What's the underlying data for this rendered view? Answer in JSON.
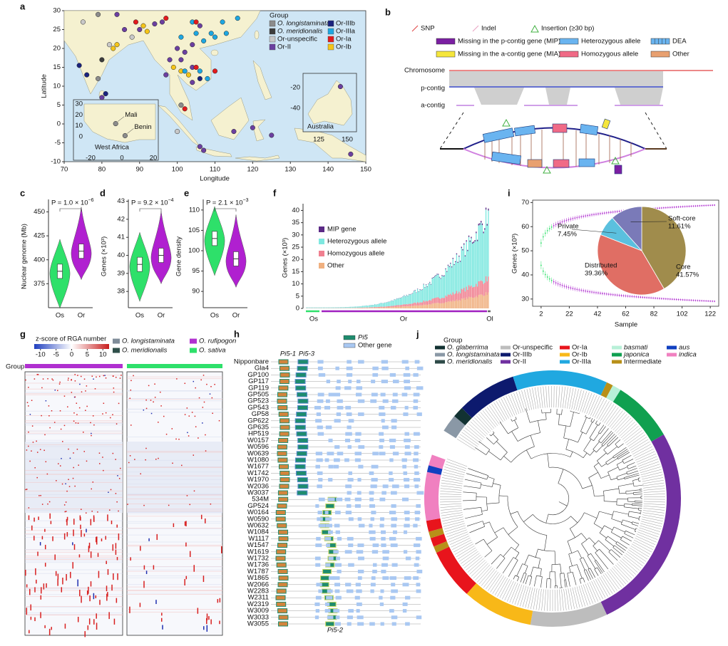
{
  "panel_a": {
    "letter": "a",
    "xlabel": "Longitude",
    "ylabel": "Latitude",
    "xlim": [
      70,
      150
    ],
    "ylim": [
      -10,
      30
    ],
    "xticks": [
      70,
      80,
      90,
      100,
      110,
      120,
      130,
      140,
      150
    ],
    "yticks": [
      -10,
      -5,
      0,
      5,
      10,
      15,
      20,
      25,
      30
    ],
    "legend_title": "Group",
    "legend": [
      {
        "name": "O. longistaminata",
        "color": "#8c8c8c",
        "italic": true
      },
      {
        "name": "O. meridionalis",
        "color": "#3c3c3c",
        "italic": true
      },
      {
        "name": "Or-unspecific",
        "color": "#c8c8c8"
      },
      {
        "name": "Or-II",
        "color": "#6b3fa0"
      },
      {
        "name": "Or-IIIb",
        "color": "#1a237e"
      },
      {
        "name": "Or-IIIa",
        "color": "#1ea7e1"
      },
      {
        "name": "Or-Ia",
        "color": "#e31a1c"
      },
      {
        "name": "Or-Ib",
        "color": "#f5c518"
      }
    ],
    "points": [
      [
        75,
        27,
        2
      ],
      [
        79,
        29,
        0
      ],
      [
        84,
        29,
        3
      ],
      [
        89,
        27,
        6
      ],
      [
        90,
        25,
        3
      ],
      [
        91,
        26,
        7
      ],
      [
        92,
        24.5,
        7
      ],
      [
        94,
        26.5,
        3
      ],
      [
        96,
        27,
        3
      ],
      [
        97,
        28,
        6
      ],
      [
        86,
        25,
        3
      ],
      [
        88,
        23,
        2
      ],
      [
        82,
        21,
        2
      ],
      [
        83,
        20,
        7
      ],
      [
        84,
        21,
        7
      ],
      [
        80,
        17,
        1
      ],
      [
        79,
        12,
        0
      ],
      [
        76,
        13,
        4
      ],
      [
        74,
        15.5,
        4
      ],
      [
        80,
        7,
        3
      ],
      [
        81,
        8,
        4
      ],
      [
        104,
        27,
        5
      ],
      [
        105,
        24,
        5
      ],
      [
        106,
        26,
        3
      ],
      [
        107,
        22,
        5
      ],
      [
        109,
        24,
        5
      ],
      [
        110,
        23,
        5
      ],
      [
        113,
        24,
        5
      ],
      [
        116,
        28,
        5
      ],
      [
        112,
        27,
        5
      ],
      [
        101,
        23,
        5
      ],
      [
        104,
        21,
        3
      ],
      [
        100,
        20,
        3
      ],
      [
        102,
        19,
        3
      ],
      [
        101,
        17,
        3
      ],
      [
        98,
        17,
        3
      ],
      [
        99,
        15,
        7
      ],
      [
        101,
        14,
        7
      ],
      [
        102,
        14,
        5
      ],
      [
        103,
        13,
        7
      ],
      [
        104,
        15,
        3
      ],
      [
        106,
        12,
        4
      ],
      [
        104,
        11,
        3
      ],
      [
        105,
        15,
        6
      ],
      [
        106,
        14,
        5
      ],
      [
        110,
        14,
        6
      ],
      [
        108,
        12,
        5
      ],
      [
        97,
        13,
        3
      ],
      [
        101,
        5,
        0
      ],
      [
        102,
        4,
        6
      ],
      [
        100,
        -2,
        2
      ],
      [
        106,
        -6,
        3
      ],
      [
        107,
        -7,
        3
      ],
      [
        115,
        -2,
        3
      ],
      [
        125,
        -3,
        3
      ],
      [
        120,
        -1,
        3
      ],
      [
        146,
        -8,
        3
      ],
      [
        105,
        27,
        6
      ]
    ],
    "inset_africa": {
      "label": "West Africa",
      "xlim": [
        -20,
        20
      ],
      "ylim": [
        0,
        30
      ],
      "xticks": [
        -20,
        0,
        20
      ],
      "yticks": [
        0,
        10,
        20,
        30
      ],
      "points": [
        {
          "name": "Mali",
          "lon": -4,
          "lat": 12,
          "group": 0
        },
        {
          "name": "Benin",
          "lon": 2,
          "lat": 1,
          "group": 0
        }
      ]
    },
    "inset_australia": {
      "label": "Australia",
      "xlim": [
        125,
        150
      ],
      "ylim": [
        -40,
        -20
      ],
      "xticks": [
        125,
        150
      ],
      "yticks": [
        -20,
        -40
      ],
      "points": [
        [
          144,
          -19,
          3
        ]
      ]
    }
  },
  "panel_b": {
    "letter": "b",
    "legend": [
      {
        "name": "SNP",
        "color": "#e04040"
      },
      {
        "name": "Indel",
        "color": "#e8a0c0"
      },
      {
        "name": "Insertion (≥30 bp)",
        "color": "#40b040"
      },
      {
        "name": "Missing in the p-contig gene (MIP)",
        "color": "#7b1fa2"
      },
      {
        "name": "Heterozygous allele",
        "color": "#6ab4f0"
      },
      {
        "name": "DEA",
        "color": "#6ab4f0"
      },
      {
        "name": "Missing in the a-contig gene (MIA)",
        "color": "#f5e63c"
      },
      {
        "name": "Homozygous allele",
        "color": "#f06a86"
      },
      {
        "name": "Other",
        "color": "#e8a070"
      }
    ],
    "tracks": [
      "Chromosome",
      "p-contig",
      "a-contig"
    ]
  },
  "violins": [
    {
      "letter": "c",
      "ylabel": "Nuclear genome (Mb)",
      "ylim": [
        350,
        463
      ],
      "yticks": [
        375,
        400,
        425,
        450
      ],
      "p_label": "P = 1.0 × 10",
      "p_exponent": "−6",
      "categories": [
        "Os",
        "Or"
      ],
      "colors": [
        "#2ee06a",
        "#b020d0"
      ],
      "medians": [
        388,
        409
      ]
    },
    {
      "letter": "d",
      "ylabel": "Genes (×10³)",
      "ylim": [
        37.1,
        43.1
      ],
      "yticks": [
        38,
        39,
        40,
        41,
        42,
        43
      ],
      "p_label": "P = 9.2 × 10",
      "p_exponent": "−4",
      "categories": [
        "Os",
        "Or"
      ],
      "colors": [
        "#2ee06a",
        "#b020d0"
      ],
      "medians": [
        39.5,
        40
      ]
    },
    {
      "letter": "e",
      "ylabel": "Gene density",
      "ylim": [
        86,
        112.6
      ],
      "yticks": [
        90,
        95,
        100,
        105,
        110
      ],
      "p_label": "P = 2.1 × 10",
      "p_exponent": "−3",
      "categories": [
        "Os",
        "Or"
      ],
      "colors": [
        "#2ee06a",
        "#b020d0"
      ],
      "medians": [
        103,
        98
      ]
    }
  ],
  "panel_f": {
    "letter": "f",
    "ylabel": "Genes (×10³)",
    "ylim": [
      0,
      41
    ],
    "yticks": [
      0,
      5,
      10,
      15,
      20,
      25,
      30,
      35,
      40
    ],
    "legend": [
      {
        "name": "MIP gene",
        "color": "#5b2a86"
      },
      {
        "name": "Heterozygous allele",
        "color": "#7fe8e0"
      },
      {
        "name": "Homozygous allele",
        "color": "#f08090"
      },
      {
        "name": "Other",
        "color": "#f0b080"
      }
    ],
    "groups": [
      {
        "name": "Os",
        "color": "#2ee06a"
      },
      {
        "name": "Or",
        "color": "#a020c0"
      },
      {
        "name": "Ol",
        "color": "#666666"
      }
    ]
  },
  "panel_i": {
    "letter": "i",
    "xlabel": "Sample",
    "ylabel": "Genes (×10³)",
    "xlim": [
      -4,
      128
    ],
    "ylim": [
      27,
      71
    ],
    "xticks": [
      2,
      22,
      42,
      62,
      82,
      102,
      122
    ],
    "yticks": [
      30,
      40,
      50,
      60,
      70
    ],
    "pie": {
      "categories": [
        "Core",
        "Distributed",
        "Private",
        "Soft-core"
      ],
      "values": [
        41.57,
        39.36,
        7.45,
        11.61
      ],
      "value_labels": [
        "41.57%",
        "39.36%",
        "7.45%",
        "11.61%"
      ],
      "colors": [
        "#a08c4c",
        "#e06e64",
        "#5bc0de",
        "#7a7ab8"
      ]
    }
  },
  "panel_g": {
    "letter": "g",
    "colorbar_title": "z-score of RGA number",
    "colorbar_lim": [
      -12,
      12
    ],
    "colorbar_ticks": [
      -10,
      -5,
      0,
      5,
      10
    ],
    "group_label": "Group",
    "legend": [
      {
        "name": "O. longistaminata",
        "color": "#7f8c99",
        "italic": true
      },
      {
        "name": "O. rufipogon",
        "color": "#b030d0",
        "italic": true
      },
      {
        "name": "O. meridionalis",
        "color": "#2f4f4a",
        "italic": true
      },
      {
        "name": "O. sativa",
        "color": "#2ee06a",
        "italic": true
      }
    ]
  },
  "panel_h": {
    "letter": "h",
    "legend": [
      {
        "name": "Pi5",
        "color": "#1e8c6e",
        "italic": true
      },
      {
        "name": "Other gene",
        "color": "#a9c8f2"
      }
    ],
    "gene_labels": [
      "Pi5-1",
      "Pi5-3",
      "Pi5-2"
    ],
    "samples": [
      "Nipponbare",
      "Gla4",
      "GP100",
      "GP117",
      "GP119",
      "GP505",
      "GP523",
      "GP543",
      "GP58",
      "GP622",
      "GP635",
      "HP519",
      "W0157",
      "W0596",
      "W0639",
      "W1080",
      "W1677",
      "W1742",
      "W1970",
      "W2036",
      "W3037",
      "534M",
      "GP524",
      "W0164",
      "W0590",
      "W0632",
      "W1084",
      "W1117",
      "W1547",
      "W1619",
      "W1732",
      "W1736",
      "W1787",
      "W1865",
      "W2066",
      "W2283",
      "W2311",
      "W2319",
      "W3009",
      "W3033",
      "W3055"
    ]
  },
  "panel_j": {
    "letter": "j",
    "legend_title": "Group",
    "legend": [
      {
        "name": "O. glaberrima",
        "color": "#123232",
        "italic": true
      },
      {
        "name": "O. longistaminata",
        "color": "#8a98a6",
        "italic": true
      },
      {
        "name": "O. meridionalis",
        "color": "#2e4a48",
        "italic": true
      },
      {
        "name": "Or-unspecific",
        "color": "#bdbdbd"
      },
      {
        "name": "Or-IIIb",
        "color": "#0d1a6e"
      },
      {
        "name": "Or-II",
        "color": "#7030a0"
      },
      {
        "name": "Or-Ia",
        "color": "#e8141c"
      },
      {
        "name": "Or-Ib",
        "color": "#f8b818"
      },
      {
        "name": "Or-IIIa",
        "color": "#20a8e0"
      },
      {
        "name": "basmati",
        "color": "#b8f0d8",
        "italic": true
      },
      {
        "name": "japonica",
        "color": "#10a050",
        "italic": true
      },
      {
        "name": "Intermediate",
        "color": "#b89018"
      },
      {
        "name": "aus",
        "color": "#1040c0",
        "italic": true
      },
      {
        "name": "indica",
        "color": "#f080c0",
        "italic": true
      }
    ]
  }
}
